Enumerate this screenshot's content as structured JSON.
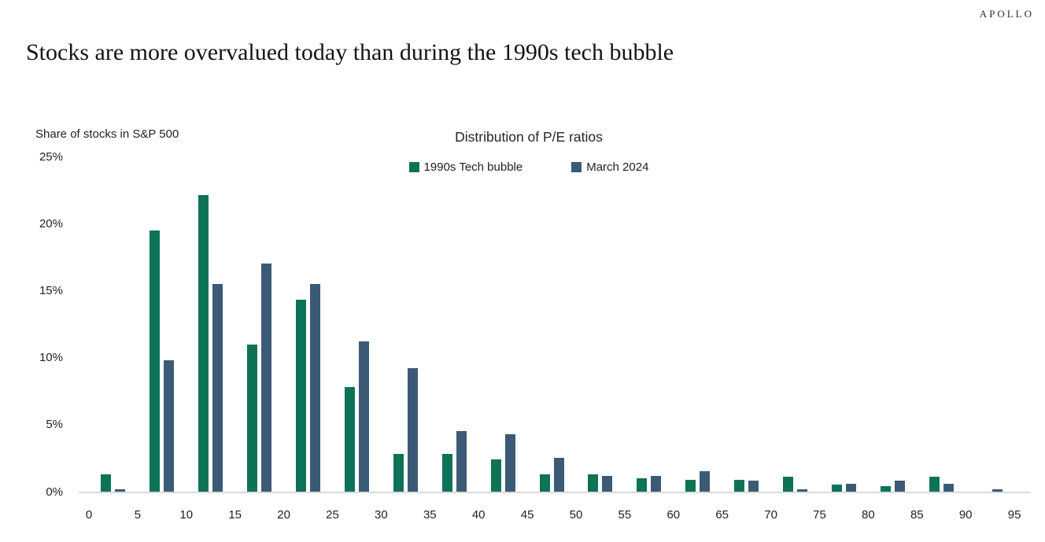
{
  "header": {
    "logo": "APOLLO",
    "title": "Stocks are more overvalued today than during the 1990s tech bubble"
  },
  "chart_data": {
    "type": "bar",
    "title": "Distribution of P/E ratios",
    "y_axis_caption": "Share of stocks in S&P 500",
    "bins": [
      "0-5",
      "5-10",
      "10-15",
      "15-20",
      "20-25",
      "25-30",
      "30-35",
      "35-40",
      "40-45",
      "45-50",
      "50-55",
      "55-60",
      "60-65",
      "65-70",
      "70-75",
      "75-80",
      "80-85",
      "85-90",
      "90-95"
    ],
    "x_tick_labels": [
      "0",
      "5",
      "10",
      "15",
      "20",
      "25",
      "30",
      "35",
      "40",
      "45",
      "50",
      "55",
      "60",
      "65",
      "70",
      "75",
      "80",
      "85",
      "90",
      "95"
    ],
    "y_tick_labels": [
      "0%",
      "5%",
      "10%",
      "15%",
      "20%",
      "25%"
    ],
    "ylim": [
      0,
      25
    ],
    "grid": "off",
    "legend_position": "top-center",
    "axis_line_color": "#D9D9D9",
    "series": [
      {
        "name": "1990s Tech bubble",
        "color": "#0E7257",
        "values": [
          1.3,
          19.5,
          22.1,
          11.0,
          14.3,
          7.8,
          2.8,
          2.8,
          2.4,
          1.3,
          1.3,
          1.0,
          0.9,
          0.9,
          1.1,
          0.5,
          0.4,
          1.1,
          0
        ]
      },
      {
        "name": "March 2024",
        "color": "#3B5A76",
        "values": [
          0.2,
          9.8,
          15.5,
          17.0,
          15.5,
          11.2,
          9.2,
          4.5,
          4.3,
          2.5,
          1.2,
          1.2,
          1.5,
          0.8,
          0.2,
          0.6,
          0.8,
          0.6,
          0.2
        ]
      }
    ]
  }
}
